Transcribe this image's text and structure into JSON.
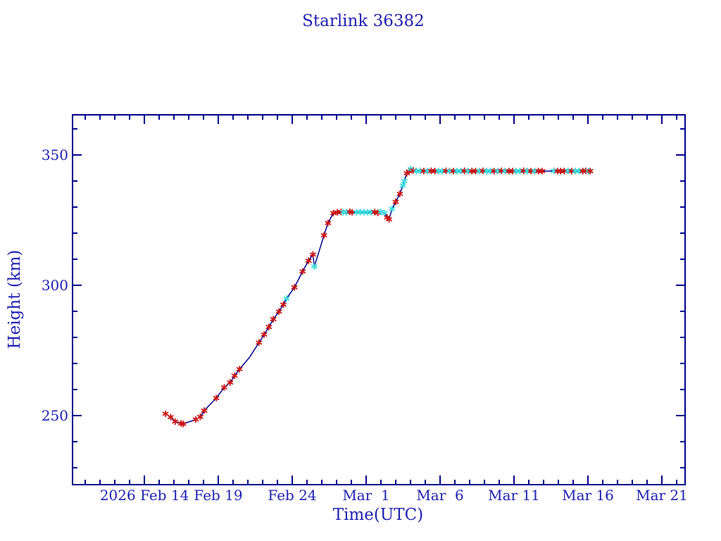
{
  "window": {
    "background": "#ffffff"
  },
  "colors": {
    "text_blue": "#2121b2",
    "axis_blue": "#00008b",
    "line_navy": "#00008b",
    "marker_red": "#cc1414",
    "marker_cyan": "#3cdcdc"
  },
  "chart_data": {
    "type": "line",
    "title": "Starlink 36382",
    "xlabel": "Time(UTC)",
    "ylabel": "Height (km)",
    "x_unit": "days since 2026 Feb 14 00:00 UTC",
    "xlim": [
      -4.86,
      36.57
    ],
    "ylim": [
      223.5,
      365.4
    ],
    "grid": false,
    "legend": null,
    "x_major_ticks": [
      {
        "day": 0,
        "label": "2026 Feb 14"
      },
      {
        "day": 5,
        "label": "Feb 19"
      },
      {
        "day": 10,
        "label": "Feb 24"
      },
      {
        "day": 15,
        "label": "Mar  1"
      },
      {
        "day": 20,
        "label": "Mar  6"
      },
      {
        "day": 25,
        "label": "Mar 11"
      },
      {
        "day": 30,
        "label": "Mar 16"
      },
      {
        "day": 35,
        "label": "Mar 21"
      }
    ],
    "x_minor_tick_step_days": 1,
    "y_major_ticks": [
      {
        "value": 250,
        "label": "250"
      },
      {
        "value": 300,
        "label": "300"
      },
      {
        "value": 350,
        "label": "350"
      }
    ],
    "y_minor_tick_step": 10,
    "marker_style": "asterisk",
    "marker_colors": {
      "r": "#cc1414",
      "c": "#3cdcdc"
    },
    "series": [
      {
        "name": "height",
        "line_color": "#00008b",
        "points_format": [
          "day_after_2026_Feb_14",
          "height_km",
          "marker: r=red c=cyan n=none"
        ],
        "points": [
          [
            1.43,
            250.7,
            "r"
          ],
          [
            1.78,
            249.4,
            "r"
          ],
          [
            2.08,
            247.7,
            "r"
          ],
          [
            2.48,
            247.0,
            "r"
          ],
          [
            2.62,
            246.8,
            "r"
          ],
          [
            3.48,
            248.5,
            "r"
          ],
          [
            3.78,
            249.5,
            "r"
          ],
          [
            4.05,
            251.9,
            "r"
          ],
          [
            4.86,
            256.7,
            "r"
          ],
          [
            5.4,
            260.8,
            "r"
          ],
          [
            5.8,
            262.7,
            "r"
          ],
          [
            6.1,
            265.3,
            "r"
          ],
          [
            6.43,
            267.8,
            "r"
          ],
          [
            7.1,
            272.3,
            "n"
          ],
          [
            7.75,
            278.0,
            "r"
          ],
          [
            8.1,
            281.1,
            "r"
          ],
          [
            8.42,
            284.0,
            "r"
          ],
          [
            8.72,
            287.0,
            "r"
          ],
          [
            9.1,
            289.9,
            "r"
          ],
          [
            9.4,
            292.6,
            "r"
          ],
          [
            9.62,
            294.9,
            "c"
          ],
          [
            10.15,
            299.2,
            "r"
          ],
          [
            10.7,
            305.3,
            "r"
          ],
          [
            11.1,
            309.4,
            "r"
          ],
          [
            11.4,
            311.8,
            "r"
          ],
          [
            11.5,
            307.2,
            "c"
          ],
          [
            12.15,
            319.2,
            "r"
          ],
          [
            12.42,
            323.9,
            "r"
          ],
          [
            12.78,
            327.7,
            "r"
          ],
          [
            13.05,
            328.0,
            "r"
          ],
          [
            13.3,
            328.1,
            "r"
          ],
          [
            13.45,
            328.0,
            "c"
          ],
          [
            13.65,
            328.0,
            "c"
          ],
          [
            13.9,
            328.2,
            "r"
          ],
          [
            14.05,
            328.0,
            "r"
          ],
          [
            14.35,
            328.0,
            "c"
          ],
          [
            14.6,
            328.1,
            "c"
          ],
          [
            14.85,
            328.0,
            "c"
          ],
          [
            15.1,
            328.0,
            "c"
          ],
          [
            15.35,
            328.0,
            "c"
          ],
          [
            15.58,
            328.1,
            "r"
          ],
          [
            15.8,
            327.8,
            "r"
          ],
          [
            16.0,
            328.2,
            "c"
          ],
          [
            16.25,
            327.7,
            "c"
          ],
          [
            16.42,
            326.0,
            "r"
          ],
          [
            16.55,
            325.3,
            "r"
          ],
          [
            16.75,
            329.3,
            "c"
          ],
          [
            17.0,
            332.0,
            "r"
          ],
          [
            17.28,
            335.1,
            "r"
          ],
          [
            17.48,
            338.3,
            "c"
          ],
          [
            17.58,
            340.0,
            "c"
          ],
          [
            17.75,
            343.0,
            "r"
          ],
          [
            17.9,
            343.7,
            "r"
          ],
          [
            18.02,
            344.6,
            "c"
          ],
          [
            18.18,
            344.0,
            "r"
          ],
          [
            18.4,
            343.8,
            "c"
          ],
          [
            18.65,
            343.9,
            "c"
          ],
          [
            18.9,
            343.8,
            "r"
          ],
          [
            19.15,
            343.8,
            "c"
          ],
          [
            19.4,
            343.9,
            "r"
          ],
          [
            19.65,
            343.8,
            "r"
          ],
          [
            19.9,
            343.8,
            "c"
          ],
          [
            20.15,
            343.8,
            "c"
          ],
          [
            20.4,
            343.9,
            "r"
          ],
          [
            20.65,
            343.8,
            "c"
          ],
          [
            20.9,
            343.8,
            "r"
          ],
          [
            21.15,
            343.8,
            "c"
          ],
          [
            21.4,
            343.8,
            "c"
          ],
          [
            21.65,
            343.9,
            "r"
          ],
          [
            21.9,
            343.8,
            "c"
          ],
          [
            22.15,
            343.8,
            "r"
          ],
          [
            22.4,
            343.8,
            "r"
          ],
          [
            22.65,
            343.8,
            "c"
          ],
          [
            22.9,
            343.9,
            "r"
          ],
          [
            23.15,
            343.8,
            "c"
          ],
          [
            23.4,
            343.8,
            "c"
          ],
          [
            23.65,
            343.8,
            "r"
          ],
          [
            23.9,
            343.8,
            "c"
          ],
          [
            24.15,
            343.9,
            "r"
          ],
          [
            24.4,
            343.8,
            "c"
          ],
          [
            24.65,
            343.8,
            "r"
          ],
          [
            24.9,
            343.8,
            "r"
          ],
          [
            25.15,
            343.8,
            "c"
          ],
          [
            25.4,
            343.8,
            "c"
          ],
          [
            25.65,
            343.9,
            "r"
          ],
          [
            25.9,
            343.8,
            "c"
          ],
          [
            26.15,
            343.8,
            "r"
          ],
          [
            26.4,
            343.8,
            "c"
          ],
          [
            26.65,
            343.8,
            "r"
          ],
          [
            26.9,
            343.8,
            "r"
          ],
          [
            27.4,
            343.8,
            "n"
          ],
          [
            27.7,
            343.9,
            "c"
          ],
          [
            27.95,
            343.8,
            "r"
          ],
          [
            28.15,
            343.8,
            "r"
          ],
          [
            28.4,
            343.8,
            "r"
          ],
          [
            28.65,
            343.9,
            "c"
          ],
          [
            28.9,
            343.8,
            "r"
          ],
          [
            29.15,
            343.8,
            "c"
          ],
          [
            29.4,
            343.8,
            "c"
          ],
          [
            29.65,
            343.8,
            "r"
          ],
          [
            29.85,
            343.9,
            "r"
          ],
          [
            30.05,
            343.8,
            "c"
          ],
          [
            30.15,
            343.8,
            "r"
          ]
        ]
      }
    ]
  }
}
